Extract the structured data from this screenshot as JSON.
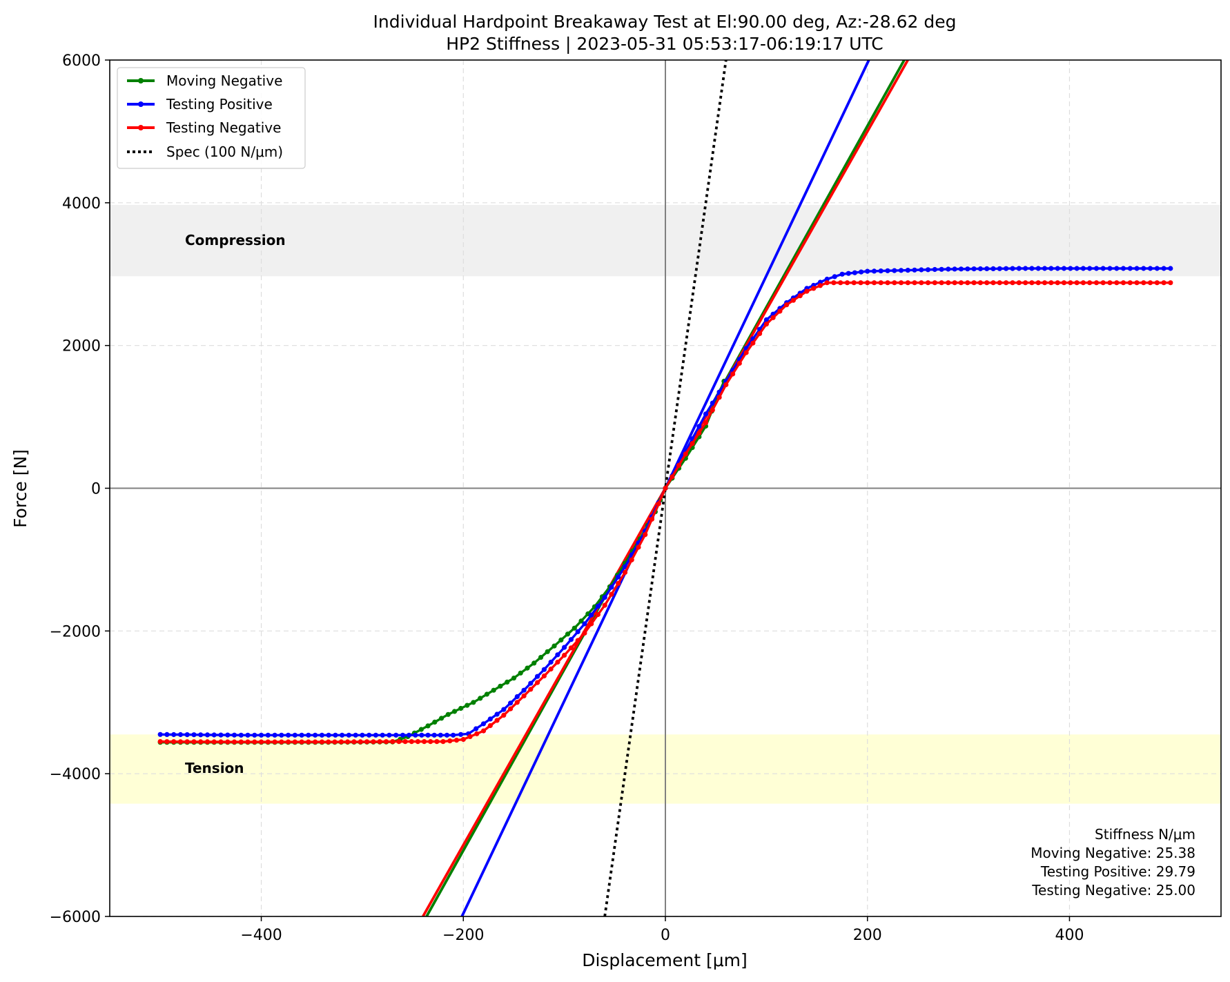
{
  "chart_data": {
    "type": "line",
    "title": "Individual Hardpoint Breakaway Test at El:90.00 deg, Az:-28.62 deg",
    "subtitle": "HP2 Stiffness | 2023-05-31 05:53:17-06:19:17 UTC",
    "xlabel": "Displacement [μm]",
    "ylabel": "Force [N]",
    "xlim": [
      -550,
      550
    ],
    "ylim": [
      -6000,
      6000
    ],
    "x_ticks": [
      -400,
      -200,
      0,
      200,
      400
    ],
    "y_ticks": [
      -6000,
      -4000,
      -2000,
      0,
      2000,
      4000,
      6000
    ],
    "x_tick_labels": [
      "−400",
      "−200",
      "0",
      "200",
      "400"
    ],
    "y_tick_labels": [
      "−6000",
      "−4000",
      "−2000",
      "0",
      "2000",
      "4000",
      "6000"
    ],
    "grid": true,
    "legend_position": "upper-left",
    "colors": {
      "moving_negative": "#008000",
      "testing_positive": "#0000ff",
      "testing_negative": "#ff0000",
      "spec": "#000000",
      "compression_band": "#f0f0f0",
      "tension_band": "#ffffd6",
      "zero_lines": "#808080"
    },
    "bands": [
      {
        "label": "Compression",
        "y_range": [
          2970,
          3970
        ]
      },
      {
        "label": "Tension",
        "y_range": [
          -4420,
          -3450
        ]
      }
    ],
    "series": [
      {
        "name": "Moving Negative",
        "x": [
          -500,
          -420,
          -340,
          -270,
          -255,
          -235,
          -215,
          -190,
          -170,
          -150,
          -130,
          -110,
          -90,
          -70,
          -55,
          -40,
          -25,
          -10,
          0,
          20,
          40,
          58
        ],
        "y": [
          -3560,
          -3560,
          -3560,
          -3555,
          -3480,
          -3330,
          -3170,
          -3000,
          -2830,
          -2660,
          -2450,
          -2210,
          -1960,
          -1660,
          -1380,
          -1050,
          -710,
          -330,
          0,
          420,
          870,
          1500
        ]
      },
      {
        "name": "Testing Positive",
        "x": [
          -500,
          -420,
          -340,
          -260,
          -210,
          -195,
          -180,
          -160,
          -140,
          -120,
          -100,
          -80,
          -60,
          -40,
          -20,
          0,
          20,
          40,
          60,
          80,
          100,
          120,
          140,
          160,
          175,
          200,
          280,
          350,
          420,
          500
        ],
        "y": [
          -3450,
          -3460,
          -3460,
          -3460,
          -3460,
          -3440,
          -3300,
          -3100,
          -2830,
          -2540,
          -2230,
          -1900,
          -1530,
          -1100,
          -600,
          0,
          520,
          1040,
          1500,
          1960,
          2360,
          2600,
          2800,
          2930,
          3000,
          3040,
          3070,
          3080,
          3080,
          3080
        ]
      },
      {
        "name": "Testing Negative",
        "x": [
          -500,
          -420,
          -340,
          -270,
          -220,
          -200,
          -180,
          -160,
          -140,
          -120,
          -100,
          -80,
          -60,
          -40,
          -20,
          0,
          20,
          40,
          60,
          80,
          100,
          120,
          140,
          160,
          200,
          280,
          350,
          420,
          500
        ],
        "y": [
          -3550,
          -3555,
          -3555,
          -3550,
          -3550,
          -3520,
          -3400,
          -3180,
          -2910,
          -2630,
          -2340,
          -2030,
          -1640,
          -1180,
          -650,
          0,
          480,
          920,
          1450,
          1900,
          2300,
          2570,
          2760,
          2880,
          2880,
          2880,
          2880,
          2880,
          2880
        ]
      }
    ],
    "fit_lines": [
      {
        "series": "Moving Negative",
        "slope": 25.38,
        "color": "#008000"
      },
      {
        "series": "Testing Positive",
        "slope": 29.79,
        "color": "#0000ff"
      },
      {
        "series": "Testing Negative",
        "slope": 25.0,
        "color": "#ff0000"
      },
      {
        "series": "Spec (100 N/μm)",
        "slope": 100,
        "color": "#000000",
        "dotted": true
      }
    ],
    "legend": [
      "Moving Negative",
      "Testing Positive",
      "Testing Negative",
      "Spec (100 N/μm)"
    ],
    "stiffness_box": {
      "heading": "Stiffness N/μm",
      "lines": [
        "Moving Negative: 25.38",
        "Testing Positive: 29.79",
        "Testing Negative: 25.00"
      ]
    }
  }
}
